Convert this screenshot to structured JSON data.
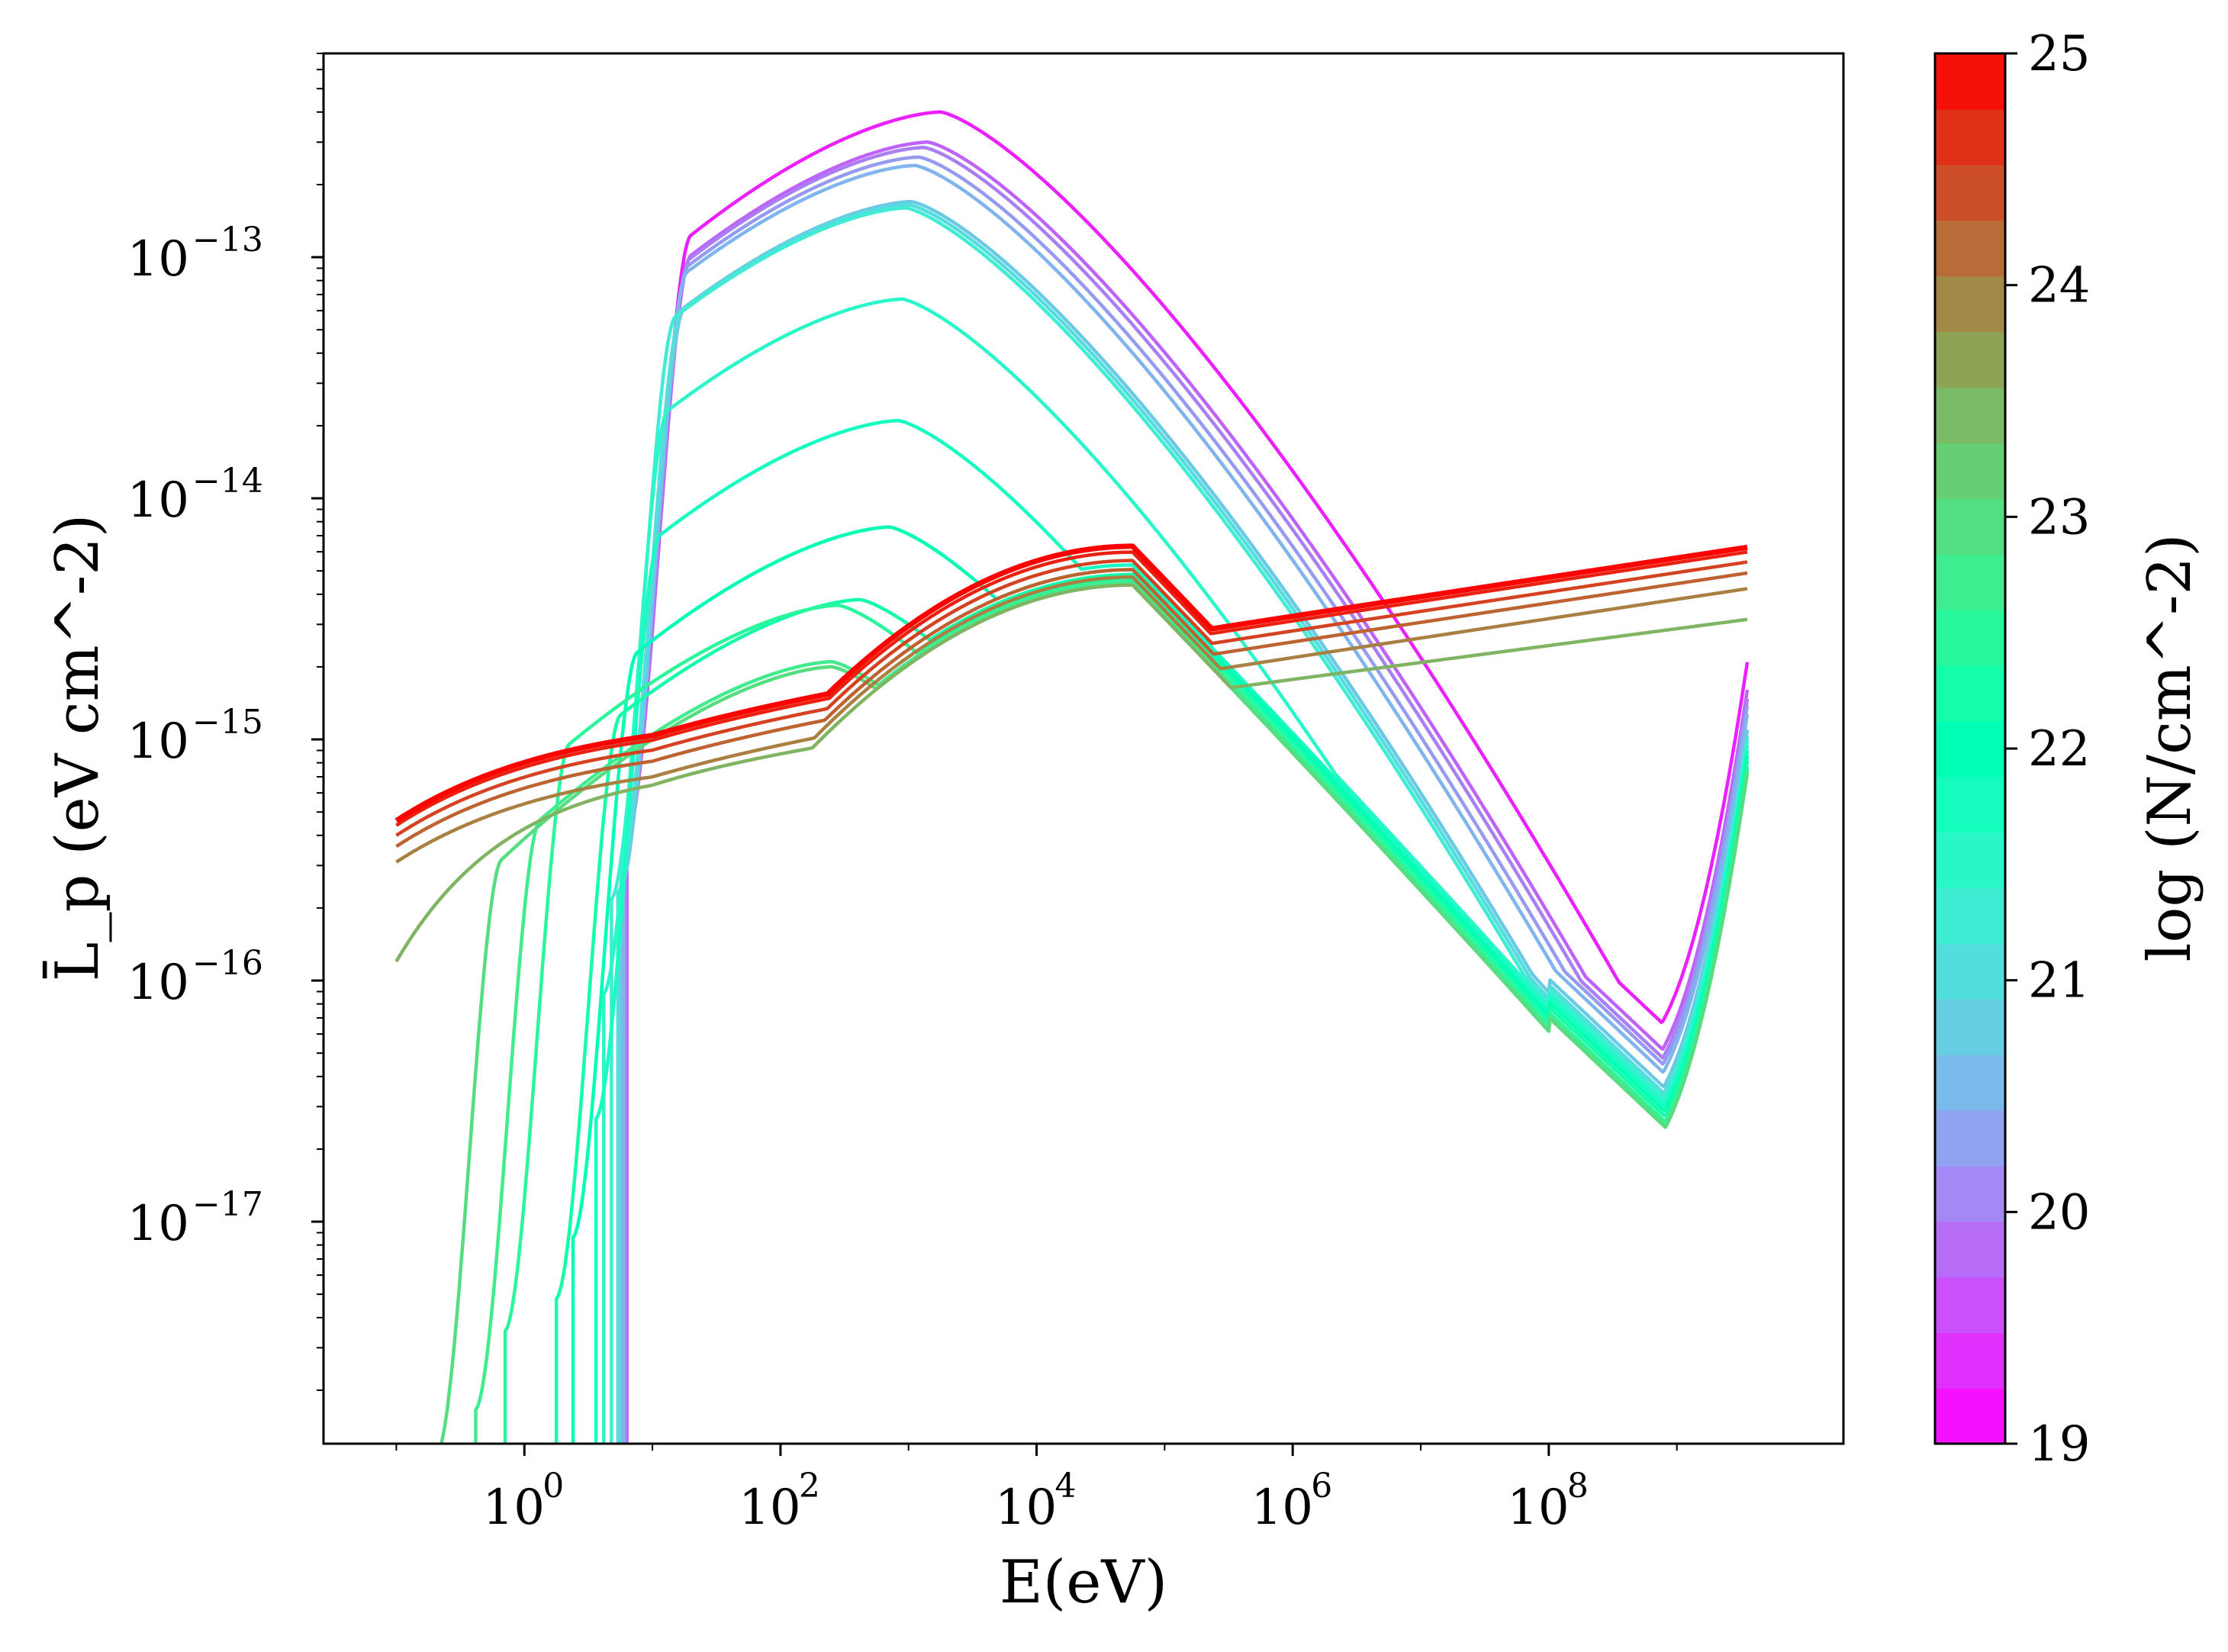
{
  "chart_data": {
    "type": "line",
    "title": "",
    "xlabel": "E(eV)",
    "ylabel": "L̄_p (eV cm^-2)",
    "xscale": "log",
    "yscale": "log",
    "xlim": [
      0.027,
      20000000000.0
    ],
    "ylim": [
      1.2e-18,
      7e-13
    ],
    "xticks": [
      {
        "label": "10",
        "exp": "0"
      },
      {
        "label": "10",
        "exp": "2"
      },
      {
        "label": "10",
        "exp": "4"
      },
      {
        "label": "10",
        "exp": "6"
      },
      {
        "label": "10",
        "exp": "8"
      }
    ],
    "yticks": [
      {
        "label": "10",
        "exp": "−13"
      },
      {
        "label": "10",
        "exp": "−14"
      },
      {
        "label": "10",
        "exp": "−15"
      },
      {
        "label": "10",
        "exp": "−16"
      },
      {
        "label": "10",
        "exp": "−17"
      }
    ],
    "colorbar": {
      "label": "log (N/cm^-2)",
      "min": 19,
      "max": 25,
      "ticks": [
        "19",
        "20",
        "21",
        "22",
        "23",
        "24",
        "25"
      ],
      "colormap": "rainbow",
      "bands": 25
    },
    "series": [
      {
        "name": "19.25",
        "cutoff_logE": 0.8,
        "type": "absorb",
        "peak": 4e-13,
        "peak_logE": 3.25,
        "level": 1.0
      },
      {
        "name": "19.75",
        "cutoff_logE": 0.8,
        "type": "absorb",
        "peak": 3e-13,
        "peak_logE": 3.15,
        "level": 0.78
      },
      {
        "name": "20.00",
        "cutoff_logE": 0.79,
        "type": "absorb",
        "peak": 2.85e-13,
        "peak_logE": 3.12,
        "level": 0.72
      },
      {
        "name": "20.25",
        "cutoff_logE": 0.78,
        "type": "absorb",
        "peak": 2.6e-13,
        "peak_logE": 3.08,
        "level": 0.68
      },
      {
        "name": "20.50",
        "cutoff_logE": 0.77,
        "type": "absorb",
        "peak": 2.4e-13,
        "peak_logE": 3.05,
        "level": 0.63
      },
      {
        "name": "20.75",
        "cutoff_logE": 0.75,
        "type": "absorb",
        "peak": 1.7e-13,
        "peak_logE": 3.02,
        "level": 0.55
      },
      {
        "name": "21.00",
        "cutoff_logE": 0.73,
        "type": "absorb",
        "peak": 1.65e-13,
        "peak_logE": 3.0,
        "level": 0.52
      },
      {
        "name": "21.25",
        "cutoff_logE": 0.68,
        "type": "absorb",
        "peak": 1.6e-13,
        "peak_logE": 2.98,
        "level": 0.5
      },
      {
        "name": "21.50",
        "cutoff_logE": 0.62,
        "type": "absorb",
        "peak": 6.7e-14,
        "peak_logE": 2.95,
        "level": 0.48
      },
      {
        "name": "21.75",
        "cutoff_logE": 0.56,
        "type": "absorb",
        "peak": 2.1e-14,
        "peak_logE": 2.92,
        "level": 0.46
      },
      {
        "name": "22.00",
        "cutoff_logE": 0.38,
        "type": "absorb",
        "peak": 7.6e-15,
        "peak_logE": 2.85,
        "level": 0.44
      },
      {
        "name": "22.25",
        "cutoff_logE": 0.25,
        "type": "absorb",
        "peak": 3.8e-15,
        "peak_logE": 2.62,
        "level": 0.42
      },
      {
        "name": "22.50",
        "cutoff_logE": -0.15,
        "type": "absorb",
        "peak": 3.6e-15,
        "peak_logE": 2.45,
        "level": 0.4
      },
      {
        "name": "22.75",
        "cutoff_logE": -0.38,
        "type": "absorb",
        "peak": 2.1e-15,
        "peak_logE": 2.4,
        "level": 0.39
      },
      {
        "name": "23.00",
        "cutoff_logE": -0.68,
        "type": "absorb",
        "peak": 2e-15,
        "peak_logE": 2.4,
        "level": 0.38
      },
      {
        "name": "23.50",
        "start": 1.2e-16,
        "type": "flat",
        "level": 0.38
      },
      {
        "name": "24.00",
        "start": 3.1e-16,
        "type": "flat",
        "level": 0.41
      },
      {
        "name": "24.25",
        "start": 3.6e-16,
        "type": "flat",
        "level": 0.44
      },
      {
        "name": "24.50",
        "start": 4e-16,
        "type": "flat",
        "level": 0.48
      },
      {
        "name": "24.75",
        "start": 4.4e-16,
        "type": "flat",
        "level": 0.52
      },
      {
        "name": "25.00",
        "start": 4.6e-16,
        "type": "flat",
        "level": 0.55
      }
    ]
  }
}
